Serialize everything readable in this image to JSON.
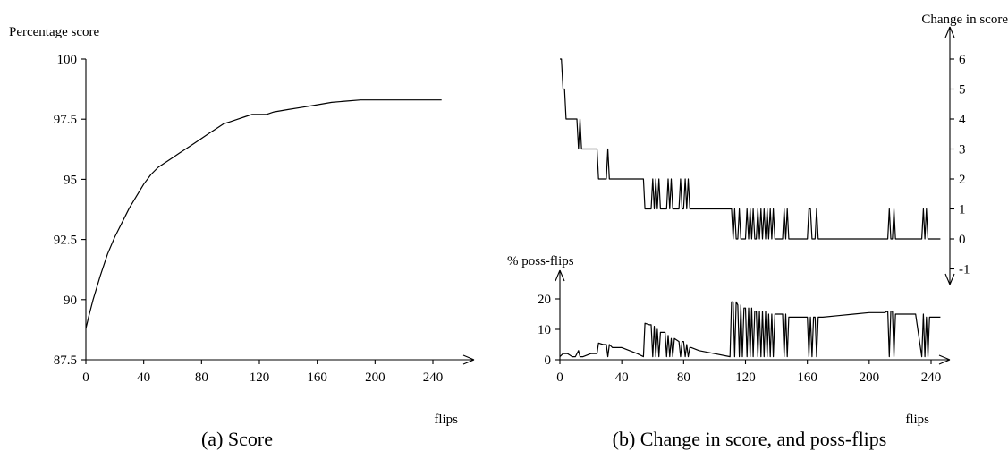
{
  "chart_data": [
    {
      "type": "line",
      "caption": "(a) Score",
      "ylabel": "Percentage score",
      "xlabel": "flips",
      "xlim": [
        0,
        250
      ],
      "ylim": [
        87.5,
        100
      ],
      "xticks": [
        0,
        40,
        80,
        120,
        160,
        200,
        240
      ],
      "yticks": [
        "87.5",
        "90",
        "92.5",
        "95",
        "97.5",
        "100"
      ],
      "ytick_values": [
        87.5,
        90,
        92.5,
        95,
        97.5,
        100
      ],
      "series": [
        {
          "x": [
            0,
            2,
            5,
            10,
            15,
            20,
            25,
            30,
            35,
            40,
            45,
            50,
            55,
            60,
            65,
            70,
            75,
            80,
            85,
            90,
            95,
            100,
            105,
            110,
            115,
            120,
            125,
            130,
            140,
            150,
            160,
            170,
            180,
            190,
            200,
            210,
            220,
            230,
            240,
            246
          ],
          "y": [
            88.8,
            89.3,
            90.0,
            91.0,
            91.9,
            92.6,
            93.2,
            93.8,
            94.3,
            94.8,
            95.2,
            95.5,
            95.7,
            95.9,
            96.1,
            96.3,
            96.5,
            96.7,
            96.9,
            97.1,
            97.3,
            97.4,
            97.5,
            97.6,
            97.7,
            97.7,
            97.7,
            97.8,
            97.9,
            98.0,
            98.1,
            98.2,
            98.25,
            98.3,
            98.3,
            98.3,
            98.3,
            98.3,
            98.3,
            98.3
          ]
        }
      ]
    },
    {
      "type": "line",
      "caption": "(b) Change in score, and poss-flips",
      "ylabel": "Change in score",
      "xlabel": "flips",
      "xlim": [
        0,
        250
      ],
      "ylim": [
        -1,
        7
      ],
      "yticks": [
        "6",
        "5",
        "4",
        "3",
        "2",
        "1",
        "0",
        "-1"
      ],
      "ytick_values": [
        6,
        5,
        4,
        3,
        2,
        1,
        0,
        -1
      ],
      "series": [
        {
          "x": [
            0,
            1,
            2,
            3,
            4,
            5,
            11,
            12,
            13,
            14,
            15,
            24,
            25,
            30,
            31,
            32,
            33,
            54,
            55,
            59,
            60,
            61,
            62,
            63,
            64,
            65,
            69,
            70,
            71,
            72,
            73,
            74,
            77,
            78,
            79,
            80,
            81,
            82,
            83,
            84,
            85,
            111,
            112,
            113,
            114,
            115,
            116,
            117,
            120,
            121,
            122,
            123,
            124,
            125,
            126,
            127,
            128,
            129,
            130,
            131,
            132,
            133,
            134,
            135,
            136,
            137,
            138,
            139,
            144,
            145,
            146,
            147,
            148,
            149,
            160,
            161,
            162,
            163,
            164,
            165,
            166,
            167,
            168,
            169,
            212,
            213,
            214,
            215,
            216,
            217,
            218,
            219,
            234,
            235,
            236,
            237,
            238,
            239,
            246
          ],
          "y": [
            6,
            6,
            5,
            5,
            4,
            4,
            4,
            3,
            4,
            3,
            3,
            3,
            2,
            2,
            3,
            2,
            2,
            2,
            1,
            1,
            2,
            1,
            2,
            1,
            2,
            1,
            1,
            2,
            1,
            2,
            1,
            1,
            1,
            2,
            1,
            1,
            2,
            1,
            2,
            1,
            1,
            1,
            0,
            1,
            0,
            0,
            1,
            0,
            0,
            1,
            0,
            1,
            0,
            1,
            0,
            0,
            1,
            0,
            1,
            0,
            1,
            0,
            1,
            0,
            1,
            0,
            1,
            0,
            0,
            1,
            0,
            1,
            0,
            0,
            0,
            1,
            1,
            0,
            0,
            0,
            1,
            0,
            0,
            0,
            0,
            1,
            0,
            0,
            1,
            0,
            0,
            0,
            0,
            1,
            0,
            1,
            0,
            0,
            0
          ]
        }
      ]
    },
    {
      "type": "line",
      "caption": "",
      "ylabel": "% poss-flips",
      "xlabel": "flips",
      "xlim": [
        0,
        250
      ],
      "ylim": [
        0,
        25
      ],
      "xticks": [
        0,
        40,
        80,
        120,
        160,
        200,
        240
      ],
      "yticks": [
        "0",
        "10",
        "20"
      ],
      "ytick_values": [
        0,
        10,
        20
      ],
      "series": [
        {
          "x": [
            0,
            2,
            5,
            8,
            10,
            12,
            13,
            15,
            20,
            24,
            25,
            28,
            30,
            31,
            32,
            34,
            40,
            45,
            50,
            54,
            55,
            58,
            59,
            60,
            61,
            62,
            63,
            64,
            65,
            68,
            69,
            70,
            71,
            72,
            73,
            74,
            77,
            78,
            79,
            80,
            81,
            82,
            83,
            84,
            85,
            90,
            100,
            110,
            111,
            112,
            113,
            114,
            115,
            116,
            117,
            118,
            119,
            120,
            121,
            122,
            123,
            124,
            125,
            126,
            127,
            128,
            129,
            130,
            131,
            132,
            133,
            134,
            135,
            136,
            137,
            138,
            139,
            140,
            144,
            145,
            146,
            147,
            148,
            149,
            150,
            155,
            160,
            161,
            162,
            163,
            164,
            165,
            166,
            167,
            168,
            169,
            170,
            180,
            190,
            200,
            210,
            212,
            213,
            214,
            215,
            216,
            217,
            218,
            219,
            220,
            230,
            234,
            235,
            236,
            237,
            238,
            239,
            240,
            246
          ],
          "y": [
            1,
            2,
            2,
            1,
            1,
            3,
            1,
            1,
            2,
            2,
            5.5,
            5,
            5,
            1,
            5,
            4,
            4,
            3,
            2,
            1,
            12,
            11.5,
            11.5,
            1,
            11,
            1,
            10,
            1,
            9,
            9,
            1,
            8,
            1,
            7,
            1,
            7,
            6,
            1,
            6,
            6,
            1,
            5,
            1,
            4,
            4,
            3,
            2,
            1,
            19,
            19,
            1,
            19,
            18,
            1,
            18,
            1,
            17,
            17,
            1,
            17,
            1,
            17,
            1,
            16,
            16,
            1,
            16,
            1,
            16,
            1,
            16,
            1,
            15,
            1,
            15,
            1,
            15,
            15,
            15,
            1,
            15,
            1,
            14,
            14,
            14,
            14,
            14,
            1,
            14,
            1,
            14,
            14,
            1,
            14,
            14,
            14,
            14,
            14.5,
            15,
            15.5,
            15.5,
            16,
            1,
            16,
            16,
            1,
            15,
            15,
            15,
            15,
            15,
            1,
            15,
            1,
            14,
            1,
            14,
            14,
            14
          ]
        }
      ]
    }
  ]
}
